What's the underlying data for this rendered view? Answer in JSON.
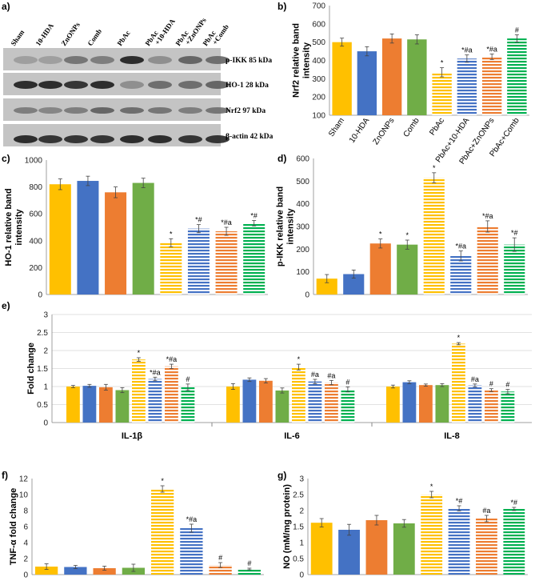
{
  "blot": {
    "panel_label": "a)",
    "lanes": [
      "Sham",
      "10-HDA",
      "ZnONPs",
      "Comb",
      "PbAc",
      "PbAc +10-HDA",
      "PbAc +ZnONPs",
      "PbAc +Comb"
    ],
    "rows": [
      "p-IKK 85 kDa",
      "HO-1 28 kDa",
      "Nrf2 97 kDa",
      "β-actin 42 kDa"
    ]
  },
  "groups": [
    "Sham",
    "10-HDA",
    "ZnONPs",
    "Comb",
    "PbAc",
    "PbAc+10-HDA",
    "PbAc+ZnONPs",
    "PbAc+Comb"
  ],
  "colors": {
    "yellow": "#FFC000",
    "blue": "#4472C4",
    "orange": "#ED7D31",
    "green": "#70AD47",
    "green_striped": "#00B050"
  },
  "chart_data": [
    {
      "id": "b",
      "panel_label": "b)",
      "type": "bar",
      "ylabel": [
        "Nrf2 relative band",
        "intensity"
      ],
      "ylim": [
        100,
        700
      ],
      "ystep": 100,
      "categories": [
        "Sham",
        "10-HDA",
        "ZnONPs",
        "Comb",
        "PbAc",
        "PbAc+10-HDA",
        "PbAc+ZnONPs",
        "PbAc+Comb"
      ],
      "values": [
        500,
        450,
        520,
        515,
        335,
        410,
        420,
        520
      ],
      "errors": [
        22,
        25,
        25,
        25,
        25,
        20,
        15,
        20
      ],
      "annotations": [
        "",
        "",
        "",
        "",
        "*",
        "*#a",
        "*#a",
        "#"
      ]
    },
    {
      "id": "c",
      "panel_label": "c)",
      "type": "bar",
      "ylabel": [
        "HO-1 relative band",
        "intensity"
      ],
      "ylim": [
        0,
        1000
      ],
      "ystep": 200,
      "values": [
        820,
        845,
        760,
        830,
        385,
        490,
        470,
        530
      ],
      "errors": [
        40,
        35,
        40,
        35,
        30,
        30,
        30,
        20
      ],
      "annotations": [
        "",
        "",
        "",
        "",
        "*",
        "*#",
        "*#a",
        "*#"
      ]
    },
    {
      "id": "d",
      "panel_label": "d)",
      "type": "bar",
      "ylabel": [
        "p-IKK relative band",
        "intensity"
      ],
      "ylim": [
        0,
        600
      ],
      "ystep": 100,
      "values": [
        70,
        90,
        225,
        220,
        515,
        170,
        300,
        220
      ],
      "errors": [
        18,
        18,
        20,
        20,
        22,
        22,
        25,
        30
      ],
      "annotations": [
        "",
        "",
        "*",
        "*",
        "*",
        "*#a",
        "*#a",
        "*#"
      ]
    },
    {
      "id": "e",
      "panel_label": "e)",
      "type": "grouped-bar",
      "ylabel": [
        "Fold change"
      ],
      "ylim": [
        0,
        3
      ],
      "ystep": 0.5,
      "grid": true,
      "clusters": [
        "IL-1β",
        "IL-6",
        "IL-8"
      ],
      "series_values": [
        [
          1.0,
          1.02,
          0.98,
          0.9,
          1.75,
          1.21,
          1.56,
          0.98
        ],
        [
          1.0,
          1.19,
          1.16,
          0.89,
          1.54,
          1.14,
          1.11,
          0.92
        ],
        [
          1.0,
          1.12,
          1.04,
          1.04,
          2.19,
          1.03,
          0.9,
          0.86
        ]
      ],
      "series_errors": [
        [
          0.03,
          0.04,
          0.08,
          0.07,
          0.05,
          0.05,
          0.06,
          0.09
        ],
        [
          0.08,
          0.05,
          0.06,
          0.07,
          0.08,
          0.06,
          0.06,
          0.07
        ],
        [
          0.04,
          0.04,
          0.03,
          0.04,
          0.03,
          0.04,
          0.04,
          0.06
        ]
      ],
      "series_annotations": [
        [
          "",
          "",
          "",
          "",
          "*",
          "*#a",
          "*#a",
          "#"
        ],
        [
          "",
          "",
          "",
          "",
          "*",
          "#a",
          "#a",
          "#"
        ],
        [
          "",
          "",
          "",
          "",
          "*",
          "#a",
          "#",
          "#"
        ]
      ]
    },
    {
      "id": "f",
      "panel_label": "f)",
      "type": "bar",
      "ylabel": [
        "TNF-α fold change"
      ],
      "ylim": [
        0,
        12
      ],
      "ystep": 2,
      "values": [
        1.0,
        0.95,
        0.8,
        0.85,
        10.7,
        5.8,
        1.2,
        0.7
      ],
      "errors": [
        0.35,
        0.2,
        0.25,
        0.45,
        0.4,
        0.5,
        0.3,
        0.1
      ],
      "annotations": [
        "",
        "",
        "",
        "",
        "*",
        "*#a",
        "#",
        "#"
      ]
    },
    {
      "id": "g",
      "panel_label": "g)",
      "type": "bar",
      "ylabel": [
        "NO (mM/mg protein)"
      ],
      "ylim": [
        0,
        3
      ],
      "ystep": 0.5,
      "values": [
        1.62,
        1.4,
        1.7,
        1.6,
        2.5,
        2.07,
        1.75,
        2.05
      ],
      "errors": [
        0.13,
        0.17,
        0.15,
        0.12,
        0.1,
        0.08,
        0.1,
        0.05
      ],
      "annotations": [
        "",
        "",
        "",
        "",
        "*",
        "*#",
        "#a",
        "*#"
      ]
    }
  ]
}
